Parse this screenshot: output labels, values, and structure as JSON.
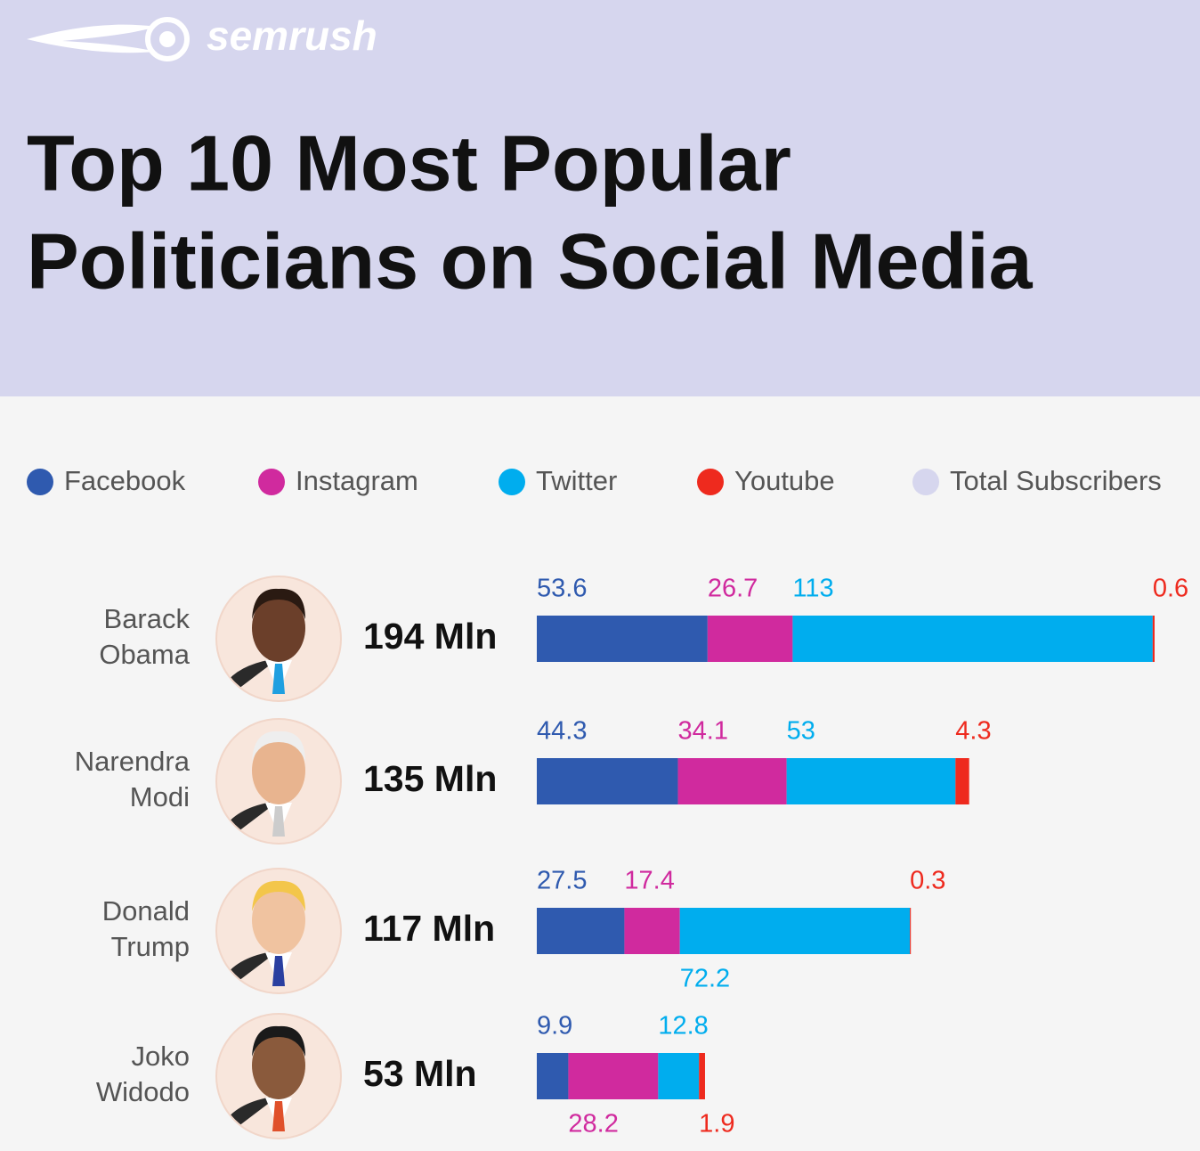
{
  "chart_data": {
    "type": "stacked-bar",
    "logo": "semrush",
    "title": [
      "Top 10 Most Popular",
      "Politicians on Social Media"
    ],
    "categories": [
      "Barack Obama",
      "Narendra Modi",
      "Donald Trump",
      "Joko Widodo"
    ],
    "series": [
      {
        "name": "Facebook",
        "color": "#2f5aaf",
        "values": [
          53.6,
          44.3,
          27.5,
          9.9
        ]
      },
      {
        "name": "Instagram",
        "color": "#d02a9e",
        "values": [
          26.7,
          34.1,
          17.4,
          28.2
        ]
      },
      {
        "name": "Twitter",
        "color": "#00adee",
        "values": [
          113,
          53,
          72.2,
          12.8
        ]
      },
      {
        "name": "Youtube",
        "color": "#ee2a1e",
        "values": [
          0.6,
          4.3,
          0.3,
          1.9
        ]
      },
      {
        "name": "Total Subscribers",
        "color": "#d6d6ee",
        "values": [
          194,
          135,
          117,
          53
        ],
        "value_labels": [
          "194 Mln",
          "135 Mln",
          "117 Mln",
          "53 Mln"
        ]
      }
    ]
  }
}
